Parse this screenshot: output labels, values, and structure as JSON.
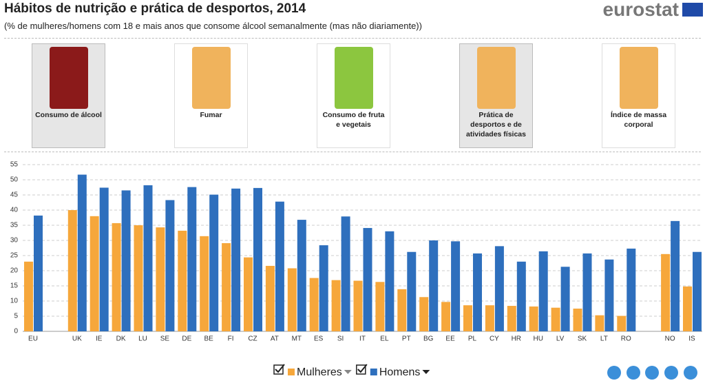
{
  "header": {
    "title": "Hábitos de nutrição e prática de desportos, 2014",
    "subtitle": "(% de mulheres/homens com 18 e mais anos que consome álcool semanalmente (mas não diariamente))",
    "logo": "eurostat"
  },
  "tiles": [
    "Consumo de álcool",
    "Fumar",
    "Consumo de fruta e vegetais",
    "Prática de desportos e de atividades físicas",
    "Índice de massa corporal"
  ],
  "chart_data": {
    "type": "bar",
    "categories": [
      "EU",
      null,
      "UK",
      "IE",
      "DK",
      "LU",
      "SE",
      "DE",
      "BE",
      "FI",
      "CZ",
      "AT",
      "MT",
      "ES",
      "SI",
      "IT",
      "EL",
      "PT",
      "BG",
      "EE",
      "PL",
      "CY",
      "HR",
      "HU",
      "LV",
      "SK",
      "LT",
      "RO",
      null,
      "NO",
      "IS"
    ],
    "series": [
      {
        "name": "Mulheres",
        "color": "#f6a73b",
        "values": [
          23,
          null,
          40,
          38,
          35.7,
          35,
          34.3,
          33.2,
          31.4,
          29.1,
          24.4,
          21.6,
          20.8,
          17.6,
          16.9,
          16.7,
          16.3,
          13.9,
          11.3,
          9.7,
          8.6,
          8.6,
          8.4,
          8.2,
          7.8,
          7.5,
          5.3,
          5.1,
          null,
          25.5,
          14.8
        ]
      },
      {
        "name": "Homens",
        "color": "#2e6fbd",
        "values": [
          38.2,
          null,
          51.7,
          47.4,
          46.5,
          48.2,
          43.3,
          47.6,
          45.1,
          47.1,
          47.3,
          42.8,
          36.8,
          28.4,
          37.9,
          34.1,
          33,
          26.2,
          30,
          29.7,
          25.7,
          28.1,
          23,
          26.4,
          21.3,
          25.7,
          23.7,
          27.3,
          null,
          36.4,
          26.2
        ]
      }
    ],
    "ylim": [
      0,
      55
    ],
    "yticks": [
      0,
      5,
      10,
      15,
      20,
      25,
      30,
      35,
      40,
      45,
      50,
      55
    ],
    "grid": true
  }
}
